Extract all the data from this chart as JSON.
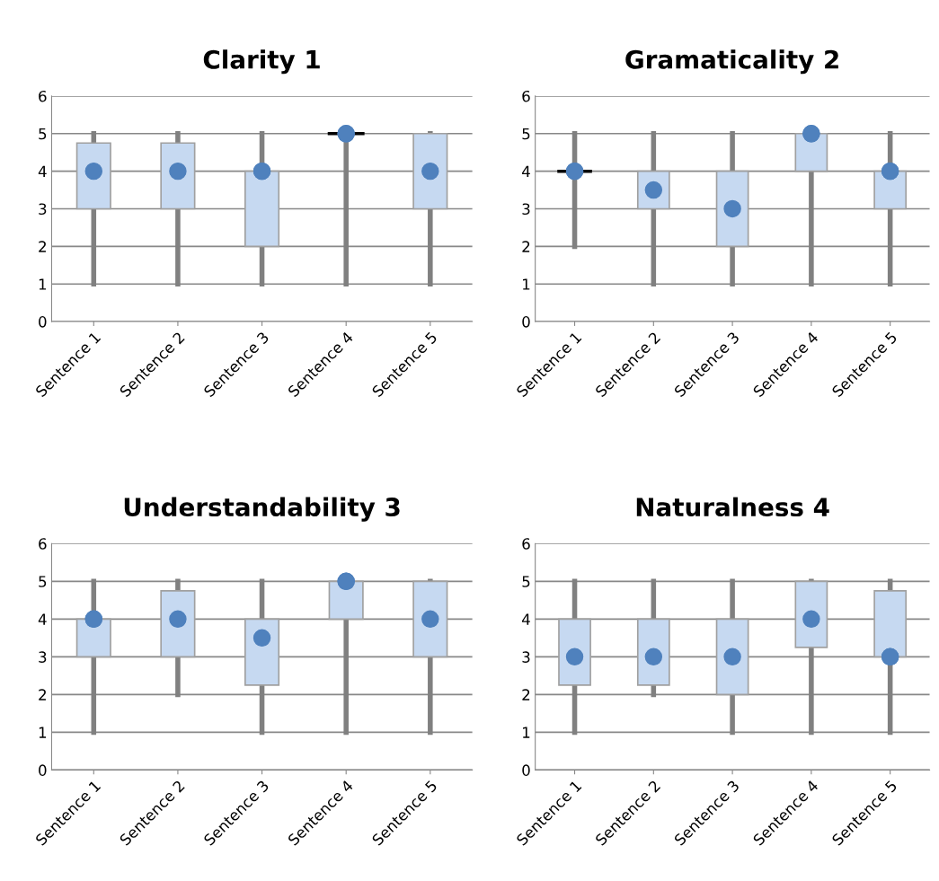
{
  "chart_data": [
    {
      "type": "box",
      "title": "Clarity 1",
      "categories": [
        "Sentence 1",
        "Sentence 2",
        "Sentence 3",
        "Sentence 4",
        "Sentence 5"
      ],
      "ylim": [
        0,
        6
      ],
      "yticks": [
        0,
        1,
        2,
        3,
        4,
        5,
        6
      ],
      "grid": "y",
      "color": "#c6d9f1",
      "boxes": [
        {
          "low": 1,
          "q1": 3,
          "median": 4,
          "q3": 4.75,
          "high": 5
        },
        {
          "low": 1,
          "q1": 3,
          "median": 4,
          "q3": 4.75,
          "high": 5
        },
        {
          "low": 1,
          "q1": 2,
          "median": 4,
          "q3": 4,
          "high": 5,
          "mean": 4
        },
        {
          "low": 1,
          "q1": 5,
          "median": 5,
          "q3": 5,
          "high": 5,
          "mean": 5
        },
        {
          "low": 1,
          "q1": 3,
          "median": 4,
          "q3": 5,
          "high": 5
        }
      ]
    },
    {
      "type": "box",
      "title": "Gramaticality 2",
      "categories": [
        "Sentence 1",
        "Sentence 2",
        "Sentence 3",
        "Sentence 4",
        "Sentence 5"
      ],
      "ylim": [
        0,
        6
      ],
      "yticks": [
        0,
        1,
        2,
        3,
        4,
        5,
        6
      ],
      "grid": "y",
      "color": "#c6d9f1",
      "boxes": [
        {
          "low": 2,
          "q1": 4,
          "median": 4,
          "q3": 4,
          "high": 5,
          "mean": 4
        },
        {
          "low": 1,
          "q1": 3,
          "median": 3.5,
          "q3": 4,
          "high": 5
        },
        {
          "low": 1,
          "q1": 2,
          "median": 3,
          "q3": 4,
          "high": 5
        },
        {
          "low": 1,
          "q1": 4,
          "median": 5,
          "q3": 5,
          "high": 5,
          "mean": 5
        },
        {
          "low": 1,
          "q1": 3,
          "median": 4,
          "q3": 4,
          "high": 5,
          "mean": 4
        }
      ]
    },
    {
      "type": "box",
      "title": "Understandability 3",
      "categories": [
        "Sentence 1",
        "Sentence 2",
        "Sentence 3",
        "Sentence 4",
        "Sentence 5"
      ],
      "ylim": [
        0,
        6
      ],
      "yticks": [
        0,
        1,
        2,
        3,
        4,
        5,
        6
      ],
      "grid": "y",
      "color": "#c6d9f1",
      "boxes": [
        {
          "low": 1,
          "q1": 3,
          "median": 4,
          "q3": 4,
          "high": 5,
          "mean": 4
        },
        {
          "low": 2,
          "q1": 3,
          "median": 4,
          "q3": 4.75,
          "high": 5
        },
        {
          "low": 1,
          "q1": 2.25,
          "median": 3.5,
          "q3": 4,
          "high": 5
        },
        {
          "low": 1,
          "q1": 4,
          "median": 5,
          "q3": 5,
          "high": 5,
          "mean": 5
        },
        {
          "low": 1,
          "q1": 3,
          "median": 4,
          "q3": 5,
          "high": 5
        }
      ]
    },
    {
      "type": "box",
      "title": "Naturalness 4",
      "categories": [
        "Sentence 1",
        "Sentence 2",
        "Sentence 3",
        "Sentence 4",
        "Sentence 5"
      ],
      "ylim": [
        0,
        6
      ],
      "yticks": [
        0,
        1,
        2,
        3,
        4,
        5,
        6
      ],
      "grid": "y",
      "color": "#c6d9f1",
      "boxes": [
        {
          "low": 1,
          "q1": 2.25,
          "median": 3,
          "q3": 4,
          "high": 5
        },
        {
          "low": 2,
          "q1": 2.25,
          "median": 3,
          "q3": 4,
          "high": 5
        },
        {
          "low": 1,
          "q1": 2,
          "median": 3,
          "q3": 4,
          "high": 5
        },
        {
          "low": 1,
          "q1": 3.25,
          "median": 4,
          "q3": 5,
          "high": 5
        },
        {
          "low": 1,
          "q1": 3,
          "median": 3,
          "q3": 4.75,
          "high": 5,
          "mean": 3
        }
      ]
    }
  ]
}
